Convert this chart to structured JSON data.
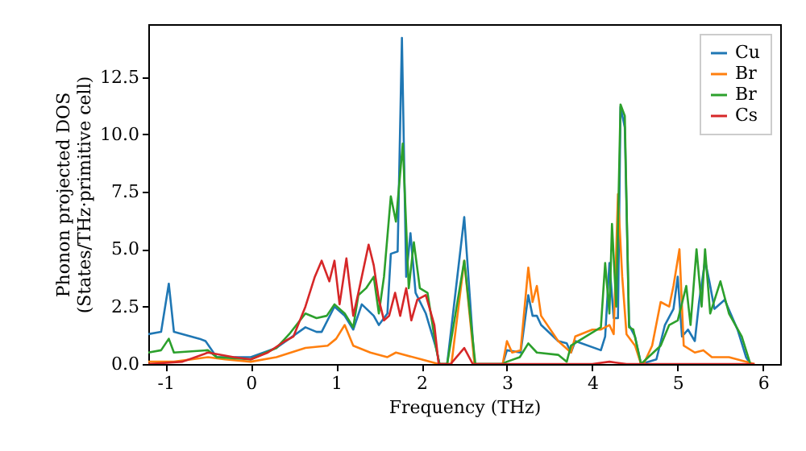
{
  "chart_data": {
    "type": "line",
    "xlabel": "Frequency (THz)",
    "ylabel": "Phonon projected DOS\n(States/THz·primitive cell)",
    "xlim": [
      -1.2,
      6.2
    ],
    "ylim": [
      0,
      14.8
    ],
    "xticks": [
      -1,
      0,
      1,
      2,
      3,
      4,
      5,
      6
    ],
    "yticks": [
      {
        "value": 0,
        "label": "0.0"
      },
      2.5,
      {
        "value": 5,
        "label": "5.0"
      },
      7.5,
      {
        "value": 10,
        "label": "10.0"
      },
      12.5
    ],
    "legend": "top right",
    "grid": false,
    "marker": "none",
    "line_style": "solid",
    "series": [
      {
        "name": "Cu",
        "color": "#1f77b4",
        "x": [
          -1.2,
          -1.05,
          -0.96,
          -0.9,
          -0.6,
          -0.53,
          -0.4,
          0,
          0.3,
          0.64,
          0.77,
          0.83,
          0.98,
          1.1,
          1.2,
          1.3,
          1.44,
          1.5,
          1.6,
          1.64,
          1.72,
          1.77,
          1.82,
          1.87,
          1.93,
          2.05,
          2.17,
          2.21,
          2.3,
          2.5,
          2.62,
          2.95,
          3.0,
          3.16,
          3.25,
          3.3,
          3.35,
          3.4,
          3.6,
          3.7,
          3.75,
          3.8,
          4.1,
          4.15,
          4.2,
          4.25,
          4.3,
          4.33,
          4.38,
          4.43,
          4.5,
          4.57,
          4.75,
          4.85,
          4.95,
          5.0,
          5.05,
          5.12,
          5.2,
          5.25,
          5.32,
          5.37,
          5.43,
          5.55,
          5.7,
          5.8,
          5.85
        ],
        "values": [
          1.3,
          1.4,
          3.5,
          1.4,
          1.1,
          1.0,
          0.3,
          0.3,
          0.7,
          1.6,
          1.4,
          1.4,
          2.5,
          2.1,
          1.5,
          2.6,
          2.1,
          1.7,
          2.2,
          4.8,
          4.9,
          14.2,
          3.8,
          5.7,
          3.1,
          2.2,
          0.7,
          0,
          0,
          6.4,
          0,
          0,
          0.6,
          0.5,
          3.0,
          2.1,
          2.1,
          1.7,
          1.0,
          0.9,
          0.5,
          1.0,
          0.6,
          1.2,
          4.4,
          2.0,
          2.0,
          11.2,
          10.3,
          1.7,
          1.2,
          0,
          0.2,
          1.7,
          2.4,
          3.8,
          1.2,
          1.5,
          1.0,
          2.7,
          4.5,
          3.6,
          2.4,
          2.8,
          1.5,
          0.3,
          0
        ]
      },
      {
        "name": "Br",
        "color": "#ff7f0e",
        "x": [
          -1.2,
          -0.9,
          -0.5,
          -0.3,
          0,
          0.3,
          0.64,
          0.9,
          1.0,
          1.1,
          1.2,
          1.4,
          1.6,
          1.7,
          2.0,
          2.2,
          2.35,
          2.5,
          2.62,
          2.95,
          3.0,
          3.06,
          3.16,
          3.25,
          3.3,
          3.35,
          3.4,
          3.6,
          3.75,
          3.8,
          4.0,
          4.1,
          4.2,
          4.25,
          4.3,
          4.35,
          4.4,
          4.5,
          4.57,
          4.6,
          4.7,
          4.8,
          4.9,
          4.95,
          5.02,
          5.07,
          5.2,
          5.3,
          5.4,
          5.6,
          5.9
        ],
        "values": [
          0.1,
          0.1,
          0.3,
          0.2,
          0.1,
          0.3,
          0.7,
          0.8,
          1.1,
          1.7,
          0.8,
          0.5,
          0.3,
          0.5,
          0.2,
          0,
          0,
          4.5,
          0,
          0,
          1.0,
          0.5,
          0.6,
          4.2,
          2.7,
          3.4,
          2.1,
          1.0,
          0.5,
          1.2,
          1.5,
          1.5,
          1.7,
          1.3,
          7.4,
          3.8,
          1.3,
          0.8,
          0,
          0,
          0.8,
          2.7,
          2.5,
          3.4,
          5.0,
          0.8,
          0.5,
          0.6,
          0.3,
          0.3,
          0
        ]
      },
      {
        "name": "Br",
        "color": "#2ca02c",
        "x": [
          -1.2,
          -1.05,
          -0.96,
          -0.9,
          -0.5,
          -0.4,
          0,
          0.3,
          0.45,
          0.64,
          0.77,
          0.89,
          0.98,
          1.1,
          1.2,
          1.26,
          1.35,
          1.44,
          1.5,
          1.56,
          1.64,
          1.7,
          1.78,
          1.85,
          1.91,
          1.98,
          2.07,
          2.17,
          2.21,
          2.3,
          2.5,
          2.63,
          2.95,
          3.0,
          3.15,
          3.25,
          3.35,
          3.6,
          3.7,
          3.75,
          4.1,
          4.15,
          4.2,
          4.23,
          4.28,
          4.33,
          4.38,
          4.43,
          4.48,
          4.57,
          4.8,
          4.9,
          5.0,
          5.1,
          5.15,
          5.22,
          5.28,
          5.32,
          5.38,
          5.5,
          5.6,
          5.75,
          5.85
        ],
        "values": [
          0.5,
          0.6,
          1.1,
          0.5,
          0.6,
          0.3,
          0.2,
          0.7,
          1.3,
          2.2,
          2.0,
          2.1,
          2.6,
          2.2,
          1.6,
          3.0,
          3.3,
          3.8,
          2.2,
          3.8,
          7.3,
          6.2,
          9.6,
          3.3,
          5.3,
          3.3,
          3.1,
          0.7,
          0,
          0,
          4.5,
          0,
          0,
          0.1,
          0.3,
          0.9,
          0.5,
          0.4,
          0.1,
          0.8,
          1.6,
          4.4,
          2.2,
          6.1,
          2.5,
          11.3,
          10.8,
          1.6,
          1.5,
          0,
          0.8,
          1.7,
          1.9,
          3.4,
          1.7,
          5.0,
          2.5,
          5.0,
          2.2,
          3.6,
          2.2,
          1.2,
          0
        ]
      },
      {
        "name": "Cs",
        "color": "#d62728",
        "x": [
          -1.2,
          -0.8,
          -0.5,
          -0.2,
          0,
          0.2,
          0.4,
          0.5,
          0.64,
          0.75,
          0.83,
          0.92,
          0.98,
          1.04,
          1.12,
          1.2,
          1.26,
          1.38,
          1.44,
          1.5,
          1.56,
          1.62,
          1.69,
          1.75,
          1.82,
          1.88,
          1.95,
          2.05,
          2.15,
          2.2,
          2.34,
          2.5,
          2.6,
          3.0,
          4.0,
          4.2,
          4.4,
          5.0,
          5.9
        ],
        "values": [
          0,
          0.1,
          0.5,
          0.3,
          0.2,
          0.5,
          1.0,
          1.2,
          2.5,
          3.8,
          4.5,
          3.6,
          4.5,
          2.6,
          4.6,
          2.1,
          3.1,
          5.2,
          4.3,
          2.8,
          1.9,
          2.1,
          3.1,
          2.1,
          3.3,
          1.9,
          2.8,
          3.0,
          1.7,
          0,
          0,
          0.7,
          0,
          0,
          0,
          0.1,
          0,
          0,
          0
        ]
      }
    ]
  }
}
